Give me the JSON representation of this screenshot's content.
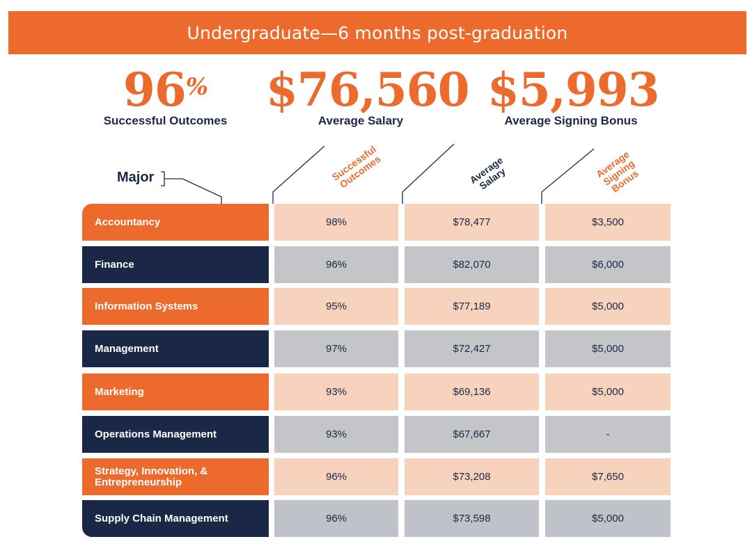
{
  "banner": {
    "title": "Undergraduate—6 months post-graduation"
  },
  "summary": {
    "outcomes": {
      "value": "96",
      "suffix": "%",
      "label": "Successful Outcomes"
    },
    "salary": {
      "value": "$76,560",
      "label": "Average Salary"
    },
    "bonus": {
      "value": "$5,993",
      "label": "Average Signing Bonus"
    }
  },
  "table": {
    "major_header": "Major",
    "columns": [
      "Successful Outcomes",
      "Average Salary",
      "Average Signing Bonus"
    ],
    "column_colors": [
      "#ec6a2c",
      "#1b2747",
      "#ec6a2c"
    ]
  },
  "colors": {
    "accent": "#ec6a2c",
    "navy": "#1b2747",
    "peach": "#f7d3be",
    "gray": "#c4c5c9"
  },
  "chart_data": {
    "type": "table",
    "columns": [
      "Major",
      "Successful Outcomes",
      "Average Salary",
      "Average Signing Bonus"
    ],
    "rows": [
      {
        "major": "Accountancy",
        "outcomes": "98%",
        "salary": "$78,477",
        "bonus": "$3,500"
      },
      {
        "major": "Finance",
        "outcomes": "96%",
        "salary": "$82,070",
        "bonus": "$6,000"
      },
      {
        "major": "Information Systems",
        "outcomes": "95%",
        "salary": "$77,189",
        "bonus": "$5,000"
      },
      {
        "major": "Management",
        "outcomes": "97%",
        "salary": "$72,427",
        "bonus": "$5,000"
      },
      {
        "major": "Marketing",
        "outcomes": "93%",
        "salary": "$69,136",
        "bonus": "$5,000"
      },
      {
        "major": "Operations Management",
        "outcomes": "93%",
        "salary": "$67,667",
        "bonus": "-"
      },
      {
        "major": "Strategy, Innovation, & Entrepreneurship",
        "outcomes": "96%",
        "salary": "$73,208",
        "bonus": "$7,650"
      },
      {
        "major": "Supply Chain Management",
        "outcomes": "96%",
        "salary": "$73,598",
        "bonus": "$5,000"
      }
    ]
  }
}
